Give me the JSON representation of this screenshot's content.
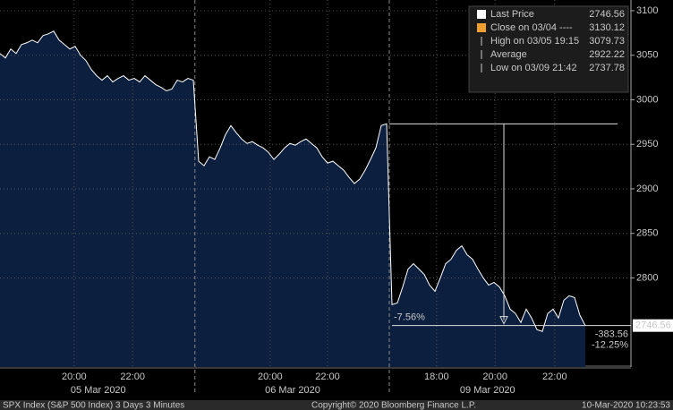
{
  "chart_data": {
    "type": "area",
    "values": [
      3052,
      3047,
      3057,
      3052,
      3062,
      3064,
      3067,
      3064,
      3072,
      3074,
      3077,
      3067,
      3062,
      3057,
      3060,
      3050,
      3044,
      3034,
      3027,
      3022,
      3027,
      3020,
      3024,
      3027,
      3022,
      3024,
      3020,
      3027,
      3022,
      3017,
      3014,
      3010,
      3012,
      3022,
      3020,
      3024,
      3022,
      2931,
      2926,
      2936,
      2933,
      2946,
      2961,
      2971,
      2963,
      2956,
      2951,
      2953,
      2949,
      2946,
      2941,
      2933,
      2939,
      2946,
      2951,
      2949,
      2953,
      2956,
      2951,
      2946,
      2936,
      2929,
      2931,
      2926,
      2921,
      2913,
      2906,
      2911,
      2921,
      2933,
      2946,
      2971,
      2973,
      2770,
      2772,
      2790,
      2810,
      2816,
      2810,
      2804,
      2792,
      2785,
      2800,
      2816,
      2821,
      2831,
      2836,
      2826,
      2821,
      2810,
      2800,
      2792,
      2795,
      2790,
      2780,
      2765,
      2760,
      2750,
      2765,
      2755,
      2742,
      2740,
      2760,
      2765,
      2755,
      2775,
      2780,
      2778,
      2758,
      2746.56
    ],
    "color": "#ffffff",
    "fill_color": "#0c1f3f",
    "xlim": [
      0,
      117.5
    ],
    "ylim": [
      2700,
      3112
    ],
    "yticks": [
      2800,
      2850,
      2900,
      2950,
      3000,
      3050,
      3100
    ],
    "xticks": [
      {
        "value": 13.8,
        "label": "20:00"
      },
      {
        "value": 24.7,
        "label": "22:00"
      },
      {
        "value": 50.3,
        "label": "20:00"
      },
      {
        "value": 61,
        "label": "22:00"
      },
      {
        "value": 81.3,
        "label": "18:00"
      },
      {
        "value": 92.2,
        "label": "20:00"
      },
      {
        "value": 103.3,
        "label": "22:00"
      }
    ],
    "date_labels": [
      {
        "value": 18.3,
        "label": "05 Mar 2020"
      },
      {
        "value": 54.5,
        "label": "06 Mar 2020"
      },
      {
        "value": 90.8,
        "label": "09 Mar 2020"
      }
    ],
    "session_breaks": [
      36.3,
      72.5
    ],
    "reference_lines": [
      2973,
      2746.56
    ],
    "drop_label": "-7.56%",
    "change_labels": [
      "-383.56",
      "-12.25%"
    ],
    "legend": [
      {
        "name": "Last Price",
        "value": 2746.56
      },
      {
        "name": "Close on 03/04 ----",
        "value": 3130.12
      },
      {
        "name": "High on 03/05 19:15",
        "value": 3079.73
      },
      {
        "name": "Average",
        "value": 2922.22
      },
      {
        "name": "Low on 03/09 21:42",
        "value": 2737.78
      }
    ],
    "footer": [
      "SPX Index (S&P 500 Index) 3 Days 3 Minutes",
      "Copyright© 2020 Bloomberg Finance L.P.",
      "10-Mar-2020 10:23:53"
    ]
  }
}
